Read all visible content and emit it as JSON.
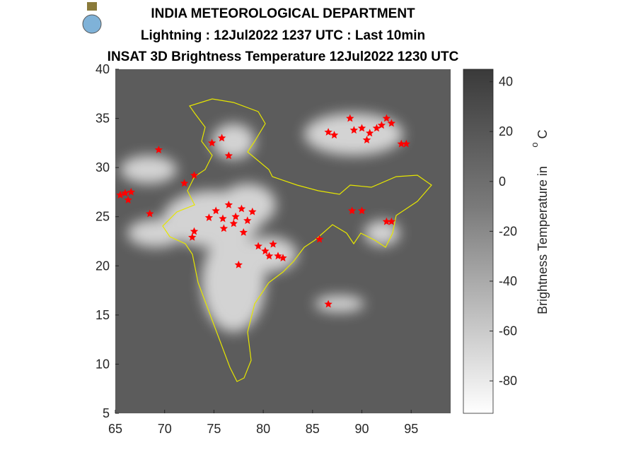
{
  "chart_data": {
    "type": "map",
    "title_lines": [
      "INDIA METEOROLOGICAL DEPARTMENT",
      "Lightning : 12Jul2022 1237 UTC : Last 10min",
      "INSAT 3D Brightness Temperature 12Jul2022   1230 UTC"
    ],
    "xlim": [
      65,
      99
    ],
    "xticks": [
      65,
      70,
      75,
      80,
      85,
      90,
      95
    ],
    "ylim": [
      5,
      40
    ],
    "yticks": [
      5,
      10,
      15,
      20,
      25,
      30,
      35,
      40
    ],
    "lightning": {
      "color": "#ff0000",
      "x": [
        65.5,
        66.0,
        66.6,
        66.3,
        69.4,
        68.5,
        72.0,
        73.0,
        74.8,
        75.8,
        76.5,
        74.5,
        75.2,
        75.9,
        76.5,
        77.2,
        77.8,
        78.4,
        78.9,
        76.0,
        77.0,
        78.0,
        72.8,
        73.0,
        77.5,
        79.5,
        80.2,
        81.0,
        81.5,
        82.0,
        80.6,
        85.7,
        86.6,
        89.0,
        90.0,
        92.5,
        93.0,
        86.6,
        87.2,
        88.8,
        89.2,
        90.0,
        90.8,
        91.5,
        92.0,
        92.5,
        93.0,
        94.0,
        94.5,
        90.5
      ],
      "y": [
        27.2,
        27.4,
        27.5,
        26.7,
        31.8,
        25.3,
        28.4,
        29.2,
        32.5,
        33.0,
        31.2,
        24.9,
        25.6,
        24.8,
        26.2,
        25.0,
        25.8,
        24.6,
        25.5,
        23.8,
        24.3,
        23.4,
        22.9,
        23.5,
        20.1,
        22.0,
        21.5,
        22.2,
        21.0,
        20.8,
        21.0,
        22.7,
        16.1,
        25.6,
        25.6,
        24.5,
        24.5,
        33.6,
        33.3,
        35.0,
        33.8,
        34.0,
        33.5,
        34.0,
        34.3,
        35.0,
        34.5,
        32.4,
        32.4,
        32.8
      ]
    },
    "colorbar": {
      "lim": [
        -93,
        45
      ],
      "ticks": [
        40,
        20,
        0,
        -20,
        -40,
        -60,
        -80
      ],
      "label": "Brightness Temperature in",
      "unit_sup": "o",
      "unit": "C"
    }
  }
}
